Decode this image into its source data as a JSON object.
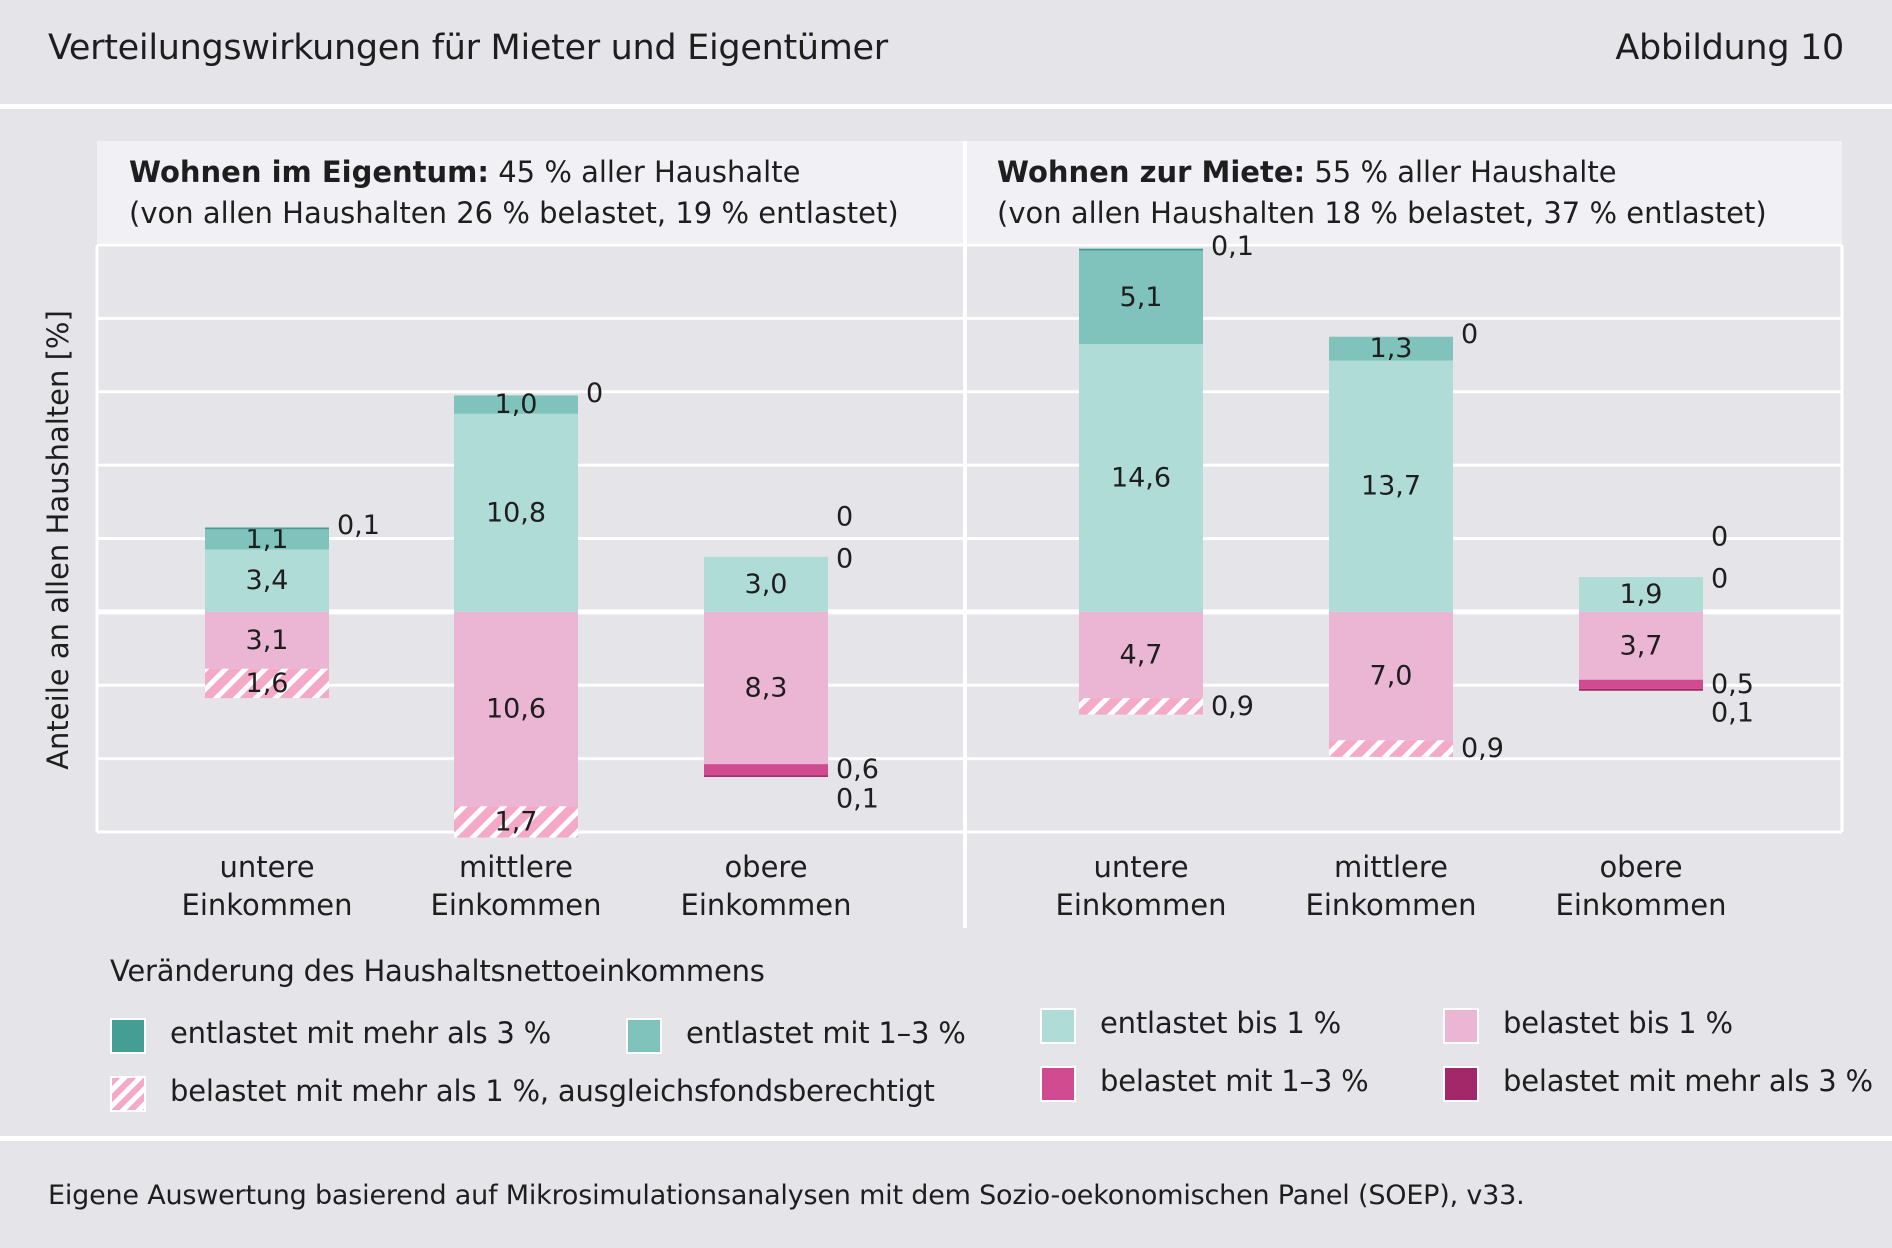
{
  "header": {
    "title": "Verteilungswirkungen für Mieter und Eigentümer",
    "figure_number": "Abbildung 10"
  },
  "footer": {
    "source": "Eigene Auswertung basierend auf Mikrosimulationsanalysen mit dem Sozio-oekonomischen Panel (SOEP), v33."
  },
  "colors": {
    "background": "#e4e4e9",
    "panel_header": "#f1f1f5",
    "entlastet_mehr_3": "#449e93",
    "entlastet_1_3": "#80c3bd",
    "entlastet_bis_1": "#b0dcd8",
    "belastet_bis_1": "#ebb6d4",
    "belastet_1_3": "#d14b90",
    "belastet_mehr_3": "#a3286a",
    "hatch": "#f4a9c8"
  },
  "legend": {
    "title": "Veränderung des Haushaltsnettoeinkommens",
    "items": [
      {
        "key": "entlastet_mehr_3",
        "label": "entlastet mit mehr als 3 %"
      },
      {
        "key": "entlastet_1_3",
        "label": "entlastet mit 1–3 %"
      },
      {
        "key": "entlastet_bis_1",
        "label": "entlastet bis 1 %"
      },
      {
        "key": "belastet_bis_1",
        "label": "belastet bis 1 %"
      },
      {
        "key": "hatch",
        "label": "belastet mit mehr als 1 %, ausgleichsfondsberechtigt"
      },
      {
        "key": "belastet_1_3",
        "label": "belastet mit 1–3 %"
      },
      {
        "key": "belastet_mehr_3",
        "label": "belastet mit mehr als 3 %"
      }
    ]
  },
  "chart_data": {
    "type": "bar",
    "stacked": true,
    "ylabel": "Anteile an allen Haushalten [%]",
    "ylim": [
      -12,
      20
    ],
    "grid": true,
    "categories": [
      "untere\nEinkommen",
      "mittlere\nEinkommen",
      "obere\nEinkommen"
    ],
    "panels": [
      {
        "title_bold": "Wohnen im Eigentum:",
        "title_rest": " 45 % aller Haushalte",
        "subtitle": "(von allen Haushalten 26 % belastet, 19 % entlastet)",
        "groups": [
          {
            "category": "untere\nEinkommen",
            "segments": [
              {
                "key": "entlastet_bis_1",
                "value": 3.4,
                "label": "3,4",
                "label_pos": "inside"
              },
              {
                "key": "entlastet_1_3",
                "value": 1.1,
                "label": "1,1",
                "label_pos": "inside"
              },
              {
                "key": "entlastet_mehr_3",
                "value": 0.1,
                "label": "0,1",
                "label_pos": "right"
              },
              {
                "key": "belastet_bis_1",
                "value": -3.1,
                "label": "3,1",
                "label_pos": "inside"
              },
              {
                "key": "hatch",
                "value": -1.6,
                "label": "1,6",
                "label_pos": "inside"
              }
            ]
          },
          {
            "category": "mittlere\nEinkommen",
            "segments": [
              {
                "key": "entlastet_bis_1",
                "value": 10.8,
                "label": "10,8",
                "label_pos": "inside"
              },
              {
                "key": "entlastet_1_3",
                "value": 1.0,
                "label": "1,0",
                "label_pos": "inside"
              },
              {
                "key": "entlastet_mehr_3",
                "value": 0,
                "label": "0",
                "label_pos": "right"
              },
              {
                "key": "belastet_bis_1",
                "value": -10.6,
                "label": "10,6",
                "label_pos": "inside"
              },
              {
                "key": "hatch",
                "value": -1.7,
                "label": "1,7",
                "label_pos": "inside"
              }
            ]
          },
          {
            "category": "obere\nEinkommen",
            "segments": [
              {
                "key": "entlastet_bis_1",
                "value": 3.0,
                "label": "3,0",
                "label_pos": "inside"
              },
              {
                "key": "entlastet_1_3",
                "value": 0,
                "label": "0",
                "label_pos": "right-mid"
              },
              {
                "key": "entlastet_mehr_3",
                "value": 0,
                "label": "0",
                "label_pos": "right-top"
              },
              {
                "key": "belastet_bis_1",
                "value": -8.3,
                "label": "8,3",
                "label_pos": "inside"
              },
              {
                "key": "belastet_1_3",
                "value": -0.6,
                "label": "0,6",
                "label_pos": "right"
              },
              {
                "key": "belastet_mehr_3",
                "value": -0.1,
                "label": "0,1",
                "label_pos": "right-below"
              }
            ]
          }
        ]
      },
      {
        "title_bold": "Wohnen zur Miete:",
        "title_rest": " 55 % aller Haushalte",
        "subtitle": "(von allen Haushalten 18 % belastet, 37 % entlastet)",
        "groups": [
          {
            "category": "untere\nEinkommen",
            "segments": [
              {
                "key": "entlastet_bis_1",
                "value": 14.6,
                "label": "14,6",
                "label_pos": "inside"
              },
              {
                "key": "entlastet_1_3",
                "value": 5.1,
                "label": "5,1",
                "label_pos": "inside"
              },
              {
                "key": "entlastet_mehr_3",
                "value": 0.1,
                "label": "0,1",
                "label_pos": "right"
              },
              {
                "key": "belastet_bis_1",
                "value": -4.7,
                "label": "4,7",
                "label_pos": "inside"
              },
              {
                "key": "hatch",
                "value": -0.9,
                "label": "0,9",
                "label_pos": "right"
              }
            ]
          },
          {
            "category": "mittlere\nEinkommen",
            "segments": [
              {
                "key": "entlastet_bis_1",
                "value": 13.7,
                "label": "13,7",
                "label_pos": "inside"
              },
              {
                "key": "entlastet_1_3",
                "value": 1.3,
                "label": "1,3",
                "label_pos": "inside"
              },
              {
                "key": "entlastet_mehr_3",
                "value": 0,
                "label": "0",
                "label_pos": "right"
              },
              {
                "key": "belastet_bis_1",
                "value": -7.0,
                "label": "7,0",
                "label_pos": "inside"
              },
              {
                "key": "hatch",
                "value": -0.9,
                "label": "0,9",
                "label_pos": "right"
              }
            ]
          },
          {
            "category": "obere\nEinkommen",
            "segments": [
              {
                "key": "entlastet_bis_1",
                "value": 1.9,
                "label": "1,9",
                "label_pos": "inside"
              },
              {
                "key": "entlastet_1_3",
                "value": 0,
                "label": "0",
                "label_pos": "right-mid"
              },
              {
                "key": "entlastet_mehr_3",
                "value": 0,
                "label": "0",
                "label_pos": "right-top"
              },
              {
                "key": "belastet_bis_1",
                "value": -3.7,
                "label": "3,7",
                "label_pos": "inside"
              },
              {
                "key": "belastet_1_3",
                "value": -0.5,
                "label": "0,5",
                "label_pos": "right"
              },
              {
                "key": "belastet_mehr_3",
                "value": -0.1,
                "label": "0,1",
                "label_pos": "right-below"
              }
            ]
          }
        ]
      }
    ]
  }
}
